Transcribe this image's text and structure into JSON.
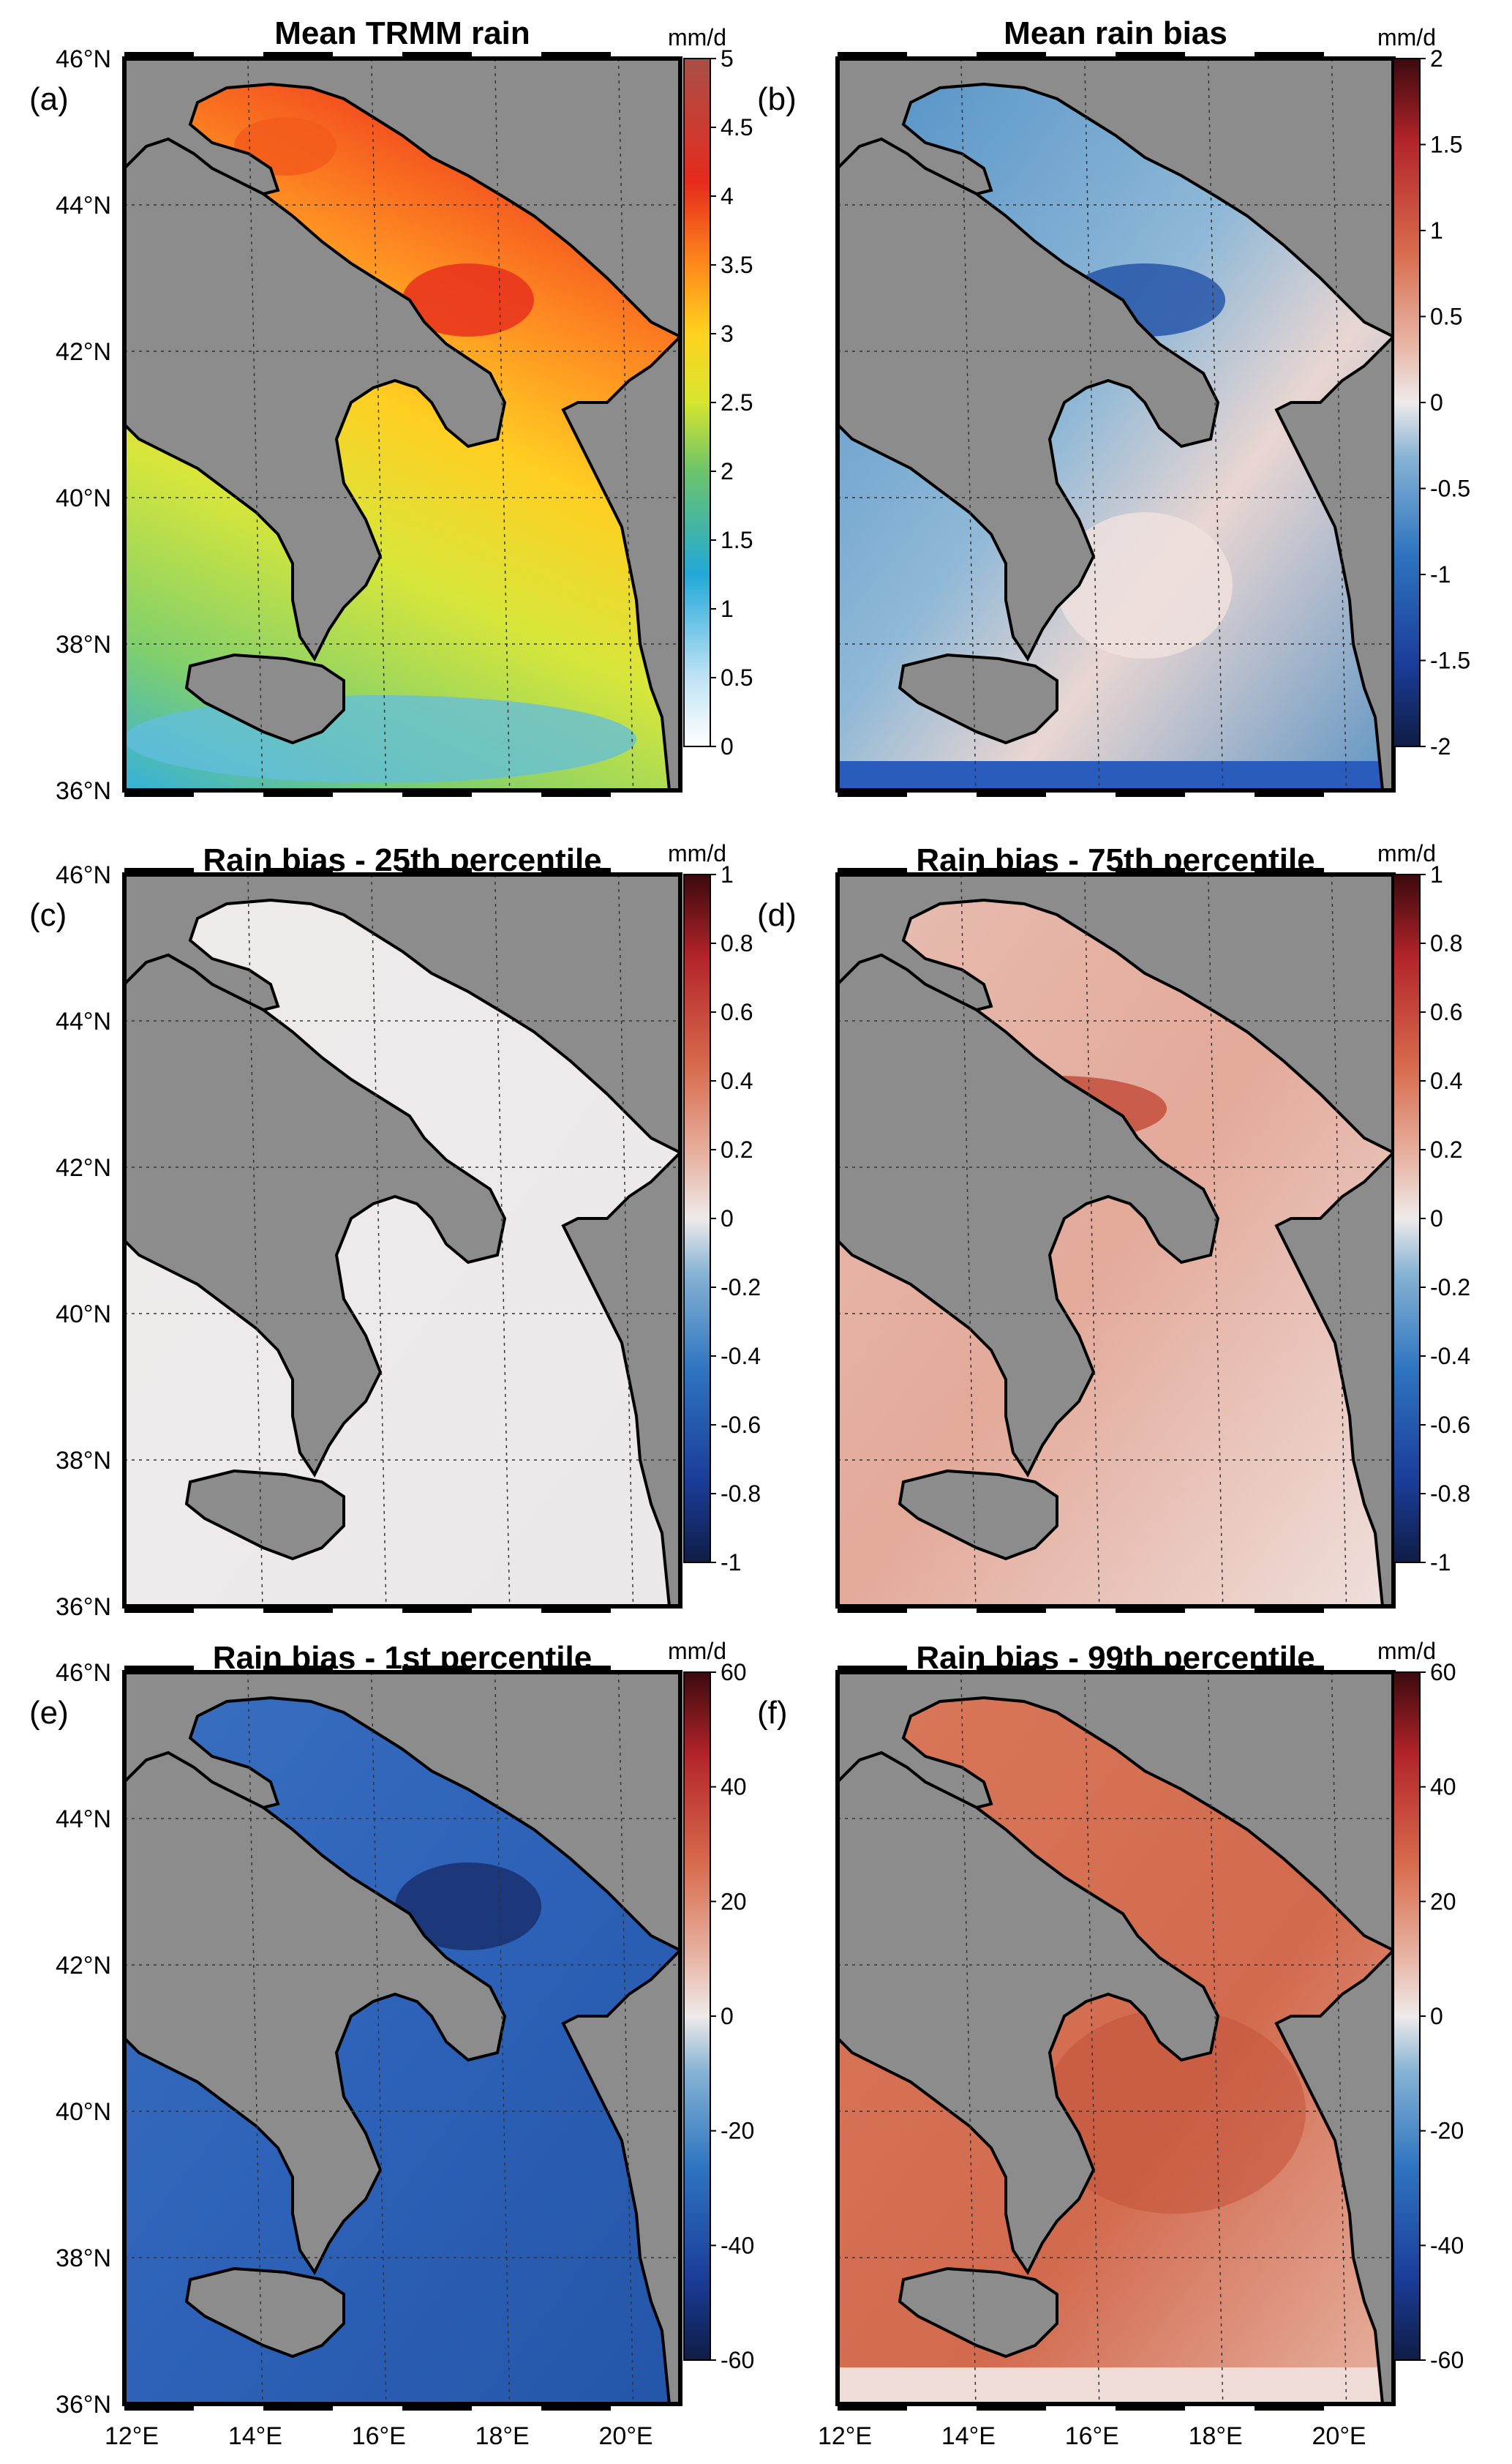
{
  "figure": {
    "panels": [
      {
        "id": "a",
        "label": "(a)",
        "title": "Mean TRMM rain",
        "unit": "mm/d",
        "scale": "rain",
        "ticks": [
          "5",
          "4.5",
          "4",
          "3.5",
          "3",
          "2.5",
          "2",
          "1.5",
          "1",
          "0.5",
          "0"
        ]
      },
      {
        "id": "b",
        "label": "(b)",
        "title": "Mean rain bias",
        "unit": "mm/d",
        "scale": "div",
        "ticks": [
          "2",
          "1.5",
          "1",
          "0.5",
          "0",
          "-0.5",
          "-1",
          "-1.5",
          "-2"
        ]
      },
      {
        "id": "c",
        "label": "(c)",
        "title": "Rain bias - 25th percentile",
        "unit": "mm/d",
        "scale": "div",
        "ticks": [
          "1",
          "0.8",
          "0.6",
          "0.4",
          "0.2",
          "0",
          "-0.2",
          "-0.4",
          "-0.6",
          "-0.8",
          "-1"
        ]
      },
      {
        "id": "d",
        "label": "(d)",
        "title": "Rain bias - 75th percentile",
        "unit": "mm/d",
        "scale": "div",
        "ticks": [
          "1",
          "0.8",
          "0.6",
          "0.4",
          "0.2",
          "0",
          "-0.2",
          "-0.4",
          "-0.6",
          "-0.8",
          "-1"
        ]
      },
      {
        "id": "e",
        "label": "(e)",
        "title": "Rain bias - 1st percentile",
        "unit": "mm/d",
        "scale": "div",
        "ticks": [
          "60",
          "40",
          "20",
          "0",
          "-20",
          "-40",
          "-60"
        ]
      },
      {
        "id": "f",
        "label": "(f)",
        "title": "Rain bias - 99th percentile",
        "unit": "mm/d",
        "scale": "div",
        "ticks": [
          "60",
          "40",
          "20",
          "0",
          "-20",
          "-40",
          "-60"
        ]
      }
    ],
    "lat_labels": [
      "46°N",
      "44°N",
      "42°N",
      "40°N",
      "38°N",
      "36°N"
    ],
    "lon_labels": [
      "12°E",
      "14°E",
      "16°E",
      "18°E",
      "20°E"
    ],
    "colors": {
      "land": "#8c8c8c",
      "coast": "#000000",
      "neutral": "#efeaea"
    }
  }
}
